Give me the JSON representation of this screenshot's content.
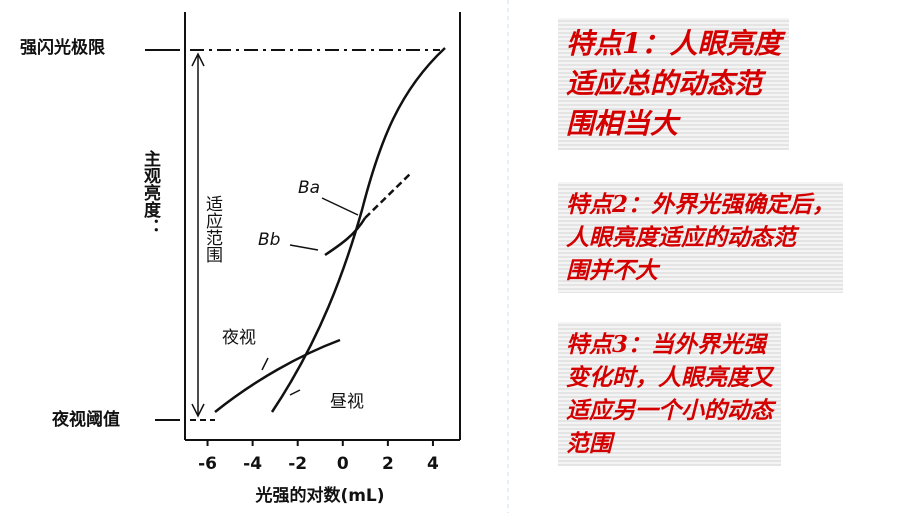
{
  "figure": {
    "y_labels": {
      "top": "强闪光极限",
      "bottom": "夜视阈值",
      "axis": "主观亮度："
    },
    "range_label": "适应范围",
    "x_title": "光强的对数(mL)",
    "xlim": [
      -7,
      5.2
    ],
    "xticks": [
      -6,
      -4,
      -2,
      0,
      2,
      4
    ],
    "curve_labels": {
      "ba": "Ba",
      "bb": "Bb",
      "night": "夜视",
      "day": "昼视"
    }
  },
  "notes": [
    {
      "lines": [
        "特点1：人眼亮度",
        "适应总的动态范",
        "围相当大"
      ]
    },
    {
      "lines": [
        "特点2：外界光强确定后，",
        "人眼亮度适应的动态范",
        "围并不大"
      ]
    },
    {
      "lines": [
        "特点3：当外界光强",
        "变化时，人眼亮度又",
        "适应另一个小的动态",
        "范围"
      ]
    }
  ]
}
